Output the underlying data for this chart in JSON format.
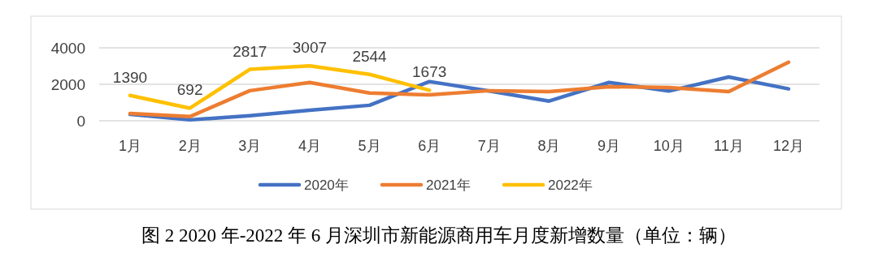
{
  "chart_data": {
    "type": "line",
    "title": "图 2 2020 年-2022 年 6 月深圳市新能源商用车月度新增数量（单位：辆）",
    "categories": [
      "1月",
      "2月",
      "3月",
      "4月",
      "5月",
      "6月",
      "7月",
      "8月",
      "9月",
      "10月",
      "11月",
      "12月"
    ],
    "series": [
      {
        "name": "2020年",
        "color": "#4472c4",
        "values": [
          350,
          50,
          280,
          580,
          850,
          2150,
          1630,
          1080,
          2100,
          1630,
          2400,
          1750
        ]
      },
      {
        "name": "2021年",
        "color": "#ed7d31",
        "values": [
          400,
          230,
          1650,
          2100,
          1520,
          1420,
          1650,
          1600,
          1870,
          1820,
          1600,
          3210
        ]
      },
      {
        "name": "2022年",
        "color": "#ffc000",
        "values": [
          1390,
          692,
          2817,
          3007,
          2544,
          1673,
          null,
          null,
          null,
          null,
          null,
          null
        ],
        "value_labels": [
          "1390",
          "692",
          "2817",
          "3007",
          "2544",
          "1673",
          null,
          null,
          null,
          null,
          null,
          null
        ]
      }
    ],
    "ylim": [
      0,
      4000
    ],
    "yticks": [
      0,
      2000,
      4000
    ],
    "grid": "y",
    "legend": "bottom",
    "marker": "none",
    "line_style": "solid"
  }
}
